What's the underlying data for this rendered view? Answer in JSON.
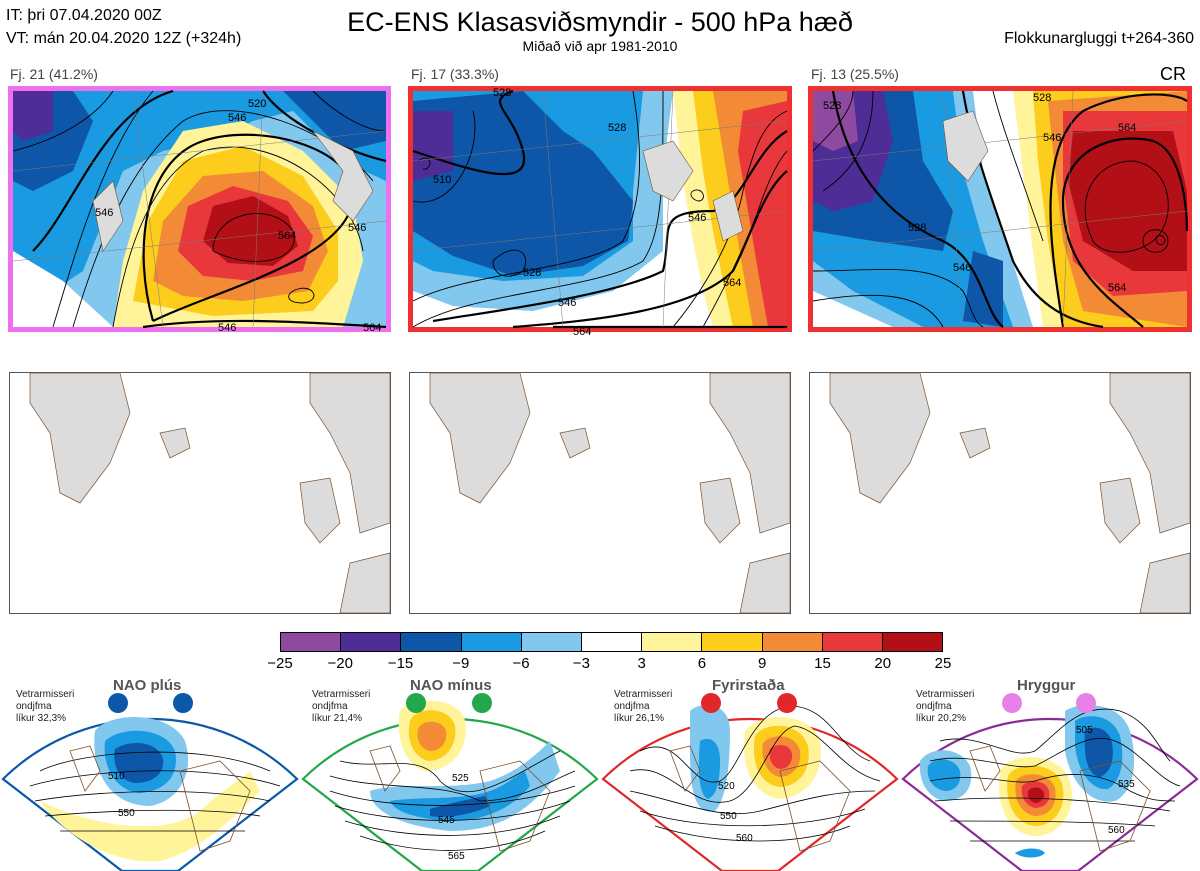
{
  "header": {
    "init_time": "IT: þri 07.04.2020 00Z",
    "valid_time": "VT: mán 20.04.2020 12Z  (+324h)",
    "title": "EC-ENS Klasasviðsmyndir - 500 hPa hæð",
    "subtitle": "Miðað við apr 1981-2010",
    "window": "Flokkunargluggi t+264-360"
  },
  "clusters": [
    {
      "label": "Fj. 21 (41.2%)",
      "frame_color": "#ee70ee",
      "contours": [
        "546",
        "520",
        "546",
        "564",
        "546",
        "546",
        "564"
      ]
    },
    {
      "label": "Fj. 17 (33.3%)",
      "frame_color": "#ee3030",
      "contours": [
        "510",
        "528",
        "528",
        "546",
        "528",
        "546",
        "564",
        "564"
      ]
    },
    {
      "label": "Fj. 13 (25.5%)",
      "frame_color": "#ee3030",
      "contours": [
        "528",
        "528",
        "546",
        "564",
        "528",
        "546",
        "564"
      ]
    }
  ],
  "cr_label": "CR",
  "colorbar": {
    "colors": [
      "#8e4a9e",
      "#4f2d96",
      "#0d56a8",
      "#1a9ae0",
      "#82c8ee",
      "#ffffff",
      "#fff49a",
      "#fccd1c",
      "#f28a36",
      "#e8383c",
      "#b30f17"
    ],
    "ticks": [
      "−25",
      "−20",
      "−15",
      "−9",
      "−6",
      "−3",
      "3",
      "6",
      "9",
      "15",
      "20",
      "25"
    ]
  },
  "regimes": [
    {
      "name": "NAO plús",
      "info": [
        "Vetrarmisseri",
        "ondjfma",
        "líkur 32,3%"
      ],
      "color": "#0b58a8",
      "contours": [
        "510",
        "550"
      ]
    },
    {
      "name": "NAO mínus",
      "info": [
        "Vetrarmisseri",
        "ondjfma",
        "líkur 21,4%"
      ],
      "color": "#22a84a",
      "contours": [
        "525",
        "545",
        "565"
      ]
    },
    {
      "name": "Fyrirstaða",
      "info": [
        "Vetrarmisseri",
        "ondjfma",
        "líkur 26,1%"
      ],
      "color": "#e02828",
      "contours": [
        "520",
        "550",
        "560"
      ]
    },
    {
      "name": "Hryggur",
      "info": [
        "Vetrarmisseri",
        "ondjfma",
        "líkur 20,2%"
      ],
      "color": "#e880e8",
      "contours": [
        "505",
        "535",
        "560"
      ]
    }
  ]
}
